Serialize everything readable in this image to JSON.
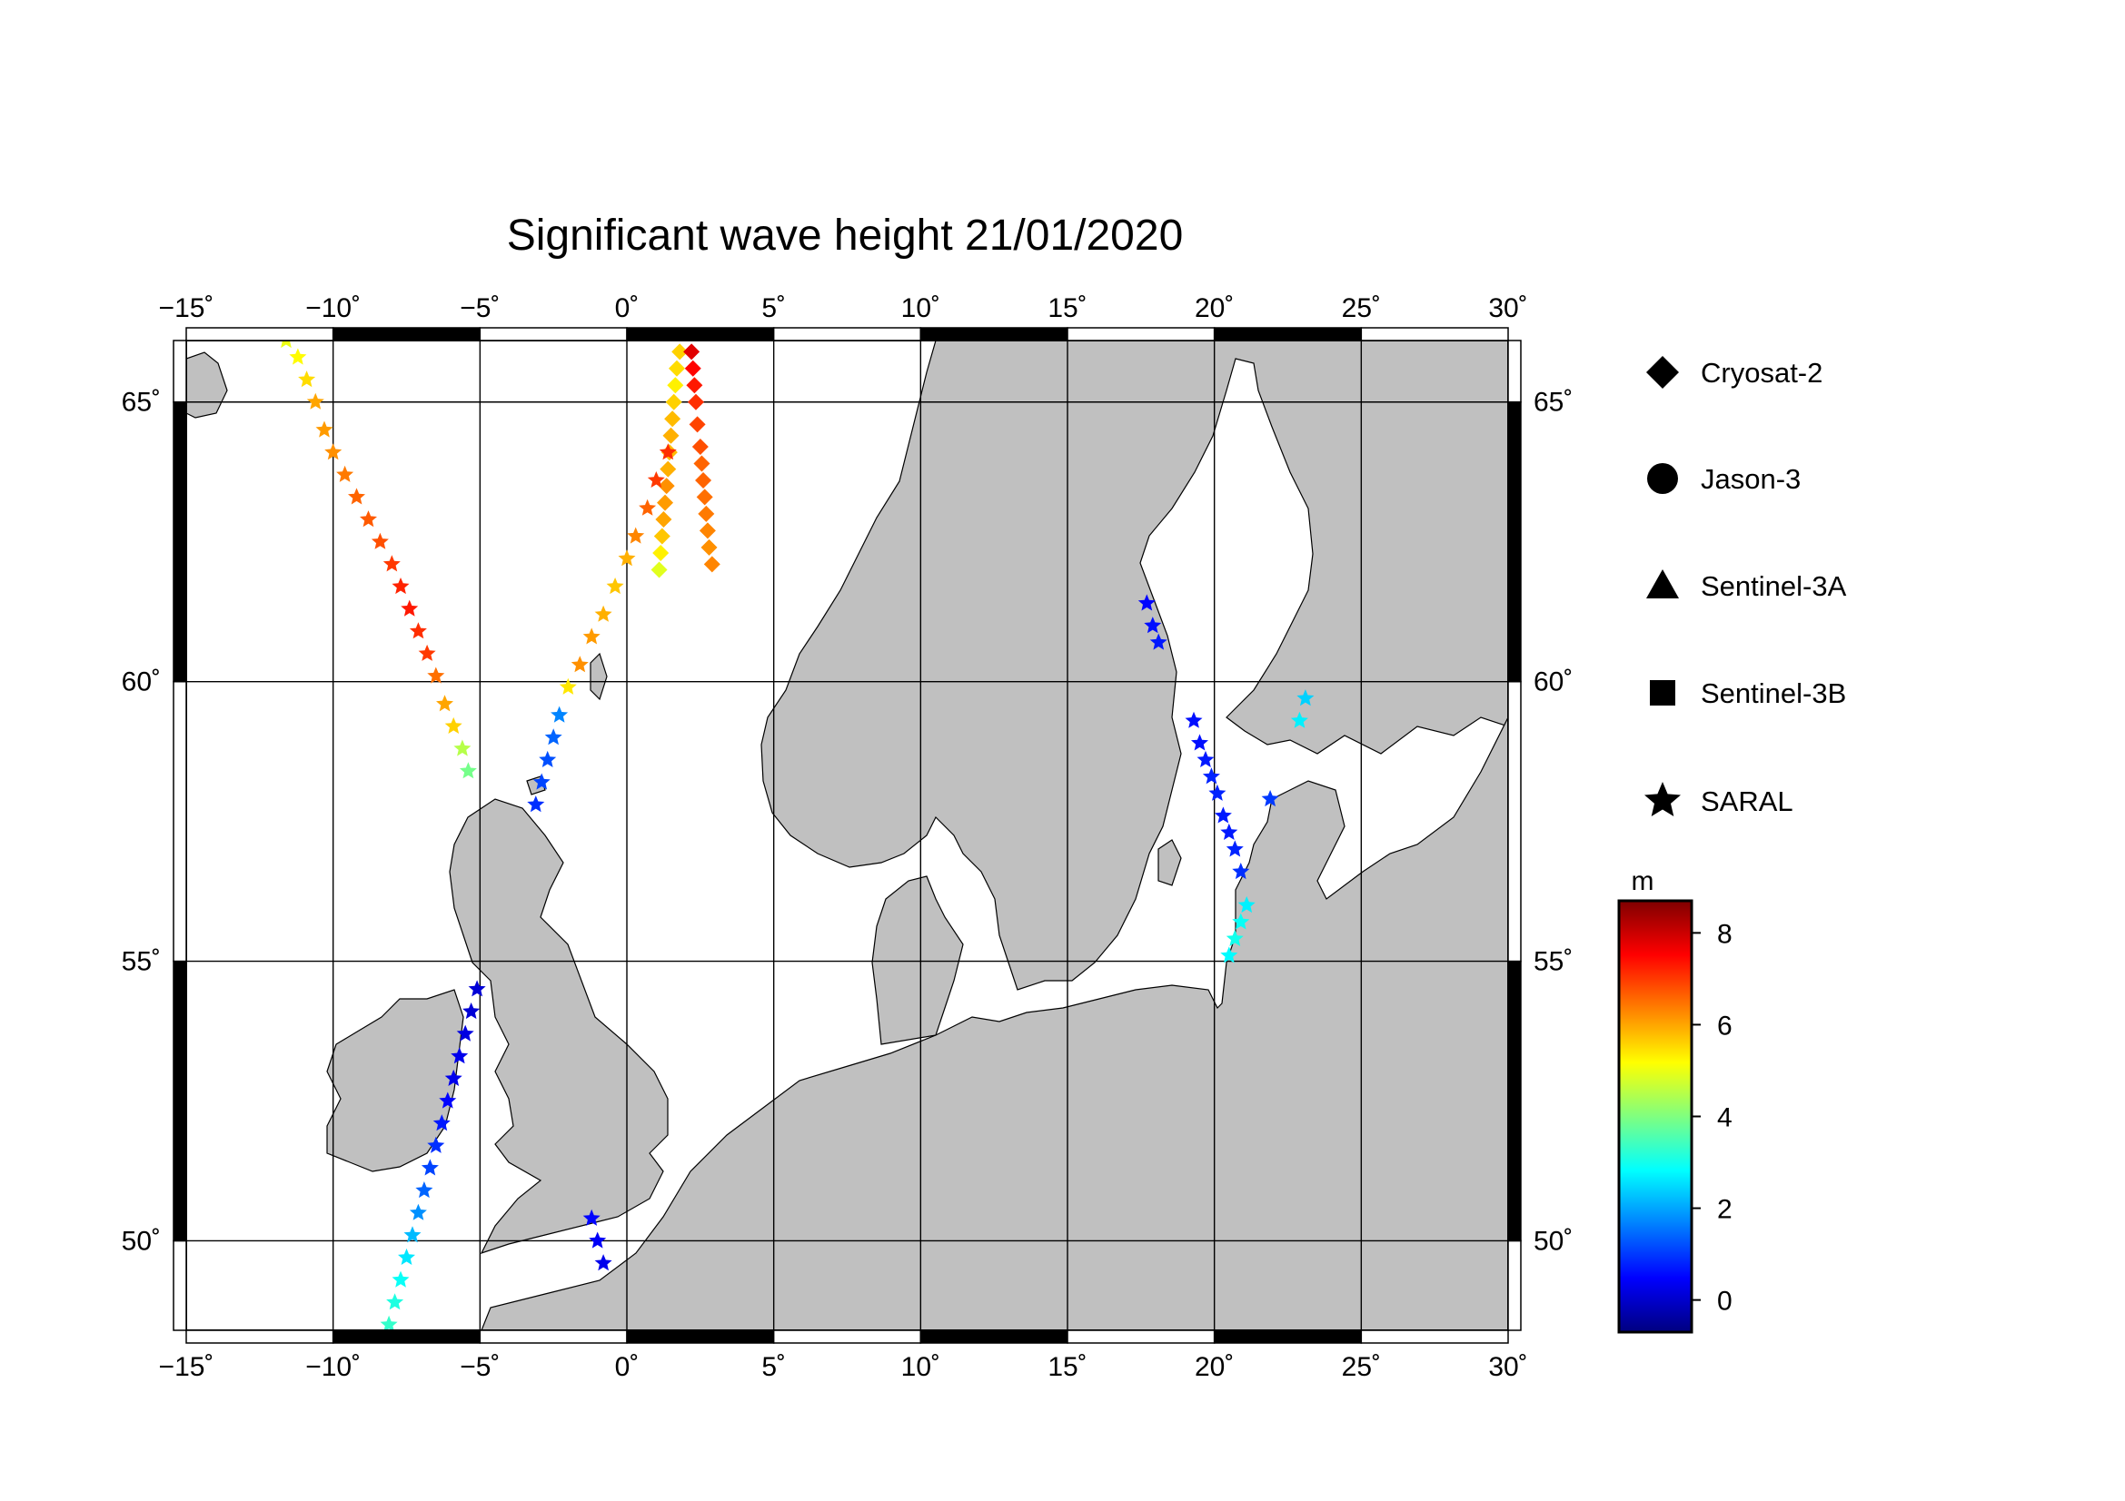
{
  "title": "Significant wave height 21/01/2020",
  "map": {
    "lon_range": [
      -15,
      30
    ],
    "lat_range": [
      48.4,
      66.1
    ],
    "lon_ticks": [
      -15,
      -10,
      -5,
      0,
      5,
      10,
      15,
      20,
      25,
      30
    ],
    "lat_ticks": [
      50,
      55,
      60,
      65
    ],
    "lon_tick_labels": [
      "−15˚",
      "−10˚",
      "−5˚",
      "0˚",
      "5˚",
      "10˚",
      "15˚",
      "20˚",
      "25˚",
      "30˚"
    ],
    "lat_tick_labels": [
      "50˚",
      "55˚",
      "60˚",
      "65˚"
    ],
    "land_color": "#c0c0c0",
    "sea_color": "#ffffff",
    "grid": true
  },
  "legend": {
    "items": [
      {
        "label": "Cryosat-2",
        "symbol": "diamond-icon"
      },
      {
        "label": "Jason-3",
        "symbol": "circle-icon"
      },
      {
        "label": "Sentinel-3A",
        "symbol": "triangle-icon"
      },
      {
        "label": "Sentinel-3B",
        "symbol": "square-icon"
      },
      {
        "label": "SARAL",
        "symbol": "star-icon"
      }
    ]
  },
  "colorbar": {
    "unit": "m",
    "min": -0.7,
    "max": 8.7,
    "ticks": [
      0,
      2,
      4,
      6,
      8
    ],
    "tick_labels": [
      "0",
      "2",
      "4",
      "6",
      "8"
    ]
  },
  "tracks": [
    {
      "satellite": "Cryosat-2",
      "symbol": "diamond",
      "points": [
        [
          1.1,
          62.0,
          4.9
        ],
        [
          1.15,
          62.3,
          5.3
        ],
        [
          1.2,
          62.6,
          5.7
        ],
        [
          1.25,
          62.9,
          6.0
        ],
        [
          1.3,
          63.2,
          6.1
        ],
        [
          1.35,
          63.5,
          6.2
        ],
        [
          1.4,
          63.8,
          5.9
        ],
        [
          1.45,
          64.1,
          5.8
        ],
        [
          1.5,
          64.4,
          5.9
        ],
        [
          1.55,
          64.7,
          5.8
        ],
        [
          1.6,
          65.0,
          5.6
        ],
        [
          1.65,
          65.3,
          5.3
        ],
        [
          1.7,
          65.6,
          5.5
        ],
        [
          1.8,
          65.9,
          5.6
        ],
        [
          2.2,
          65.9,
          7.8
        ],
        [
          2.25,
          65.6,
          7.5
        ],
        [
          2.3,
          65.3,
          7.3
        ],
        [
          2.35,
          65.0,
          7.1
        ],
        [
          2.4,
          64.6,
          6.9
        ],
        [
          2.5,
          64.2,
          6.8
        ],
        [
          2.55,
          63.9,
          6.6
        ],
        [
          2.6,
          63.6,
          6.6
        ],
        [
          2.65,
          63.3,
          6.5
        ],
        [
          2.7,
          63.0,
          6.4
        ],
        [
          2.75,
          62.7,
          6.3
        ],
        [
          2.8,
          62.4,
          6.2
        ],
        [
          2.9,
          62.1,
          6.3
        ]
      ]
    },
    {
      "satellite": "SARAL",
      "symbol": "star",
      "points": [
        [
          -11.6,
          66.1,
          5.0
        ],
        [
          -11.2,
          65.8,
          5.2
        ],
        [
          -10.9,
          65.4,
          5.5
        ],
        [
          -10.6,
          65.0,
          6.0
        ],
        [
          -10.3,
          64.5,
          6.1
        ],
        [
          -10.0,
          64.1,
          6.2
        ],
        [
          -9.6,
          63.7,
          6.4
        ],
        [
          -9.2,
          63.3,
          6.6
        ],
        [
          -8.8,
          62.9,
          6.7
        ],
        [
          -8.4,
          62.5,
          6.8
        ],
        [
          -8.0,
          62.1,
          7.0
        ],
        [
          -7.7,
          61.7,
          7.2
        ],
        [
          -7.4,
          61.3,
          7.3
        ],
        [
          -7.1,
          60.9,
          7.1
        ],
        [
          -6.8,
          60.5,
          7.0
        ],
        [
          -6.5,
          60.1,
          6.5
        ],
        [
          -6.2,
          59.6,
          6.0
        ],
        [
          -5.9,
          59.2,
          5.6
        ],
        [
          -5.6,
          58.8,
          4.5
        ],
        [
          -5.4,
          58.4,
          3.9
        ],
        [
          -3.1,
          57.8,
          0.9
        ],
        [
          -2.9,
          58.2,
          1.1
        ],
        [
          -2.7,
          58.6,
          1.2
        ],
        [
          -2.5,
          59.0,
          1.4
        ],
        [
          -2.3,
          59.4,
          1.7
        ],
        [
          -2.0,
          59.9,
          5.4
        ],
        [
          -1.6,
          60.3,
          6.2
        ],
        [
          -1.2,
          60.8,
          6.1
        ],
        [
          -0.8,
          61.2,
          5.9
        ],
        [
          -0.4,
          61.7,
          5.7
        ],
        [
          0.0,
          62.2,
          5.9
        ],
        [
          0.3,
          62.6,
          6.3
        ],
        [
          0.7,
          63.1,
          6.6
        ],
        [
          1.0,
          63.6,
          7.0
        ],
        [
          1.4,
          64.1,
          7.1
        ],
        [
          -5.1,
          54.5,
          0.1
        ],
        [
          -5.3,
          54.1,
          0.1
        ],
        [
          -5.5,
          53.7,
          0.2
        ],
        [
          -5.7,
          53.3,
          0.3
        ],
        [
          -5.9,
          52.9,
          0.3
        ],
        [
          -6.1,
          52.5,
          0.5
        ],
        [
          -6.3,
          52.1,
          0.7
        ],
        [
          -6.5,
          51.7,
          0.9
        ],
        [
          -6.7,
          51.3,
          1.1
        ],
        [
          -6.9,
          50.9,
          1.4
        ],
        [
          -7.1,
          50.5,
          1.8
        ],
        [
          -7.3,
          50.1,
          2.2
        ],
        [
          -7.5,
          49.7,
          2.6
        ],
        [
          -7.7,
          49.3,
          2.9
        ],
        [
          -7.9,
          48.9,
          3.1
        ],
        [
          -8.1,
          48.5,
          3.3
        ],
        [
          -1.2,
          50.4,
          0.5
        ],
        [
          -1.0,
          50.0,
          0.4
        ],
        [
          -0.8,
          49.6,
          0.3
        ],
        [
          17.7,
          61.4,
          0.5
        ],
        [
          17.9,
          61.0,
          0.6
        ],
        [
          18.1,
          60.7,
          0.7
        ],
        [
          19.3,
          59.3,
          0.6
        ],
        [
          19.5,
          58.9,
          0.6
        ],
        [
          19.7,
          58.6,
          0.7
        ],
        [
          19.9,
          58.3,
          0.8
        ],
        [
          20.1,
          58.0,
          0.8
        ],
        [
          20.3,
          57.6,
          0.7
        ],
        [
          20.5,
          57.3,
          0.7
        ],
        [
          20.7,
          57.0,
          0.8
        ],
        [
          20.9,
          56.6,
          0.9
        ],
        [
          21.1,
          56.0,
          2.7
        ],
        [
          20.9,
          55.7,
          2.9
        ],
        [
          20.7,
          55.4,
          3.0
        ],
        [
          20.5,
          55.1,
          2.8
        ],
        [
          23.1,
          59.7,
          2.4
        ],
        [
          22.9,
          59.3,
          2.7
        ],
        [
          21.9,
          57.9,
          1.0
        ]
      ]
    }
  ]
}
